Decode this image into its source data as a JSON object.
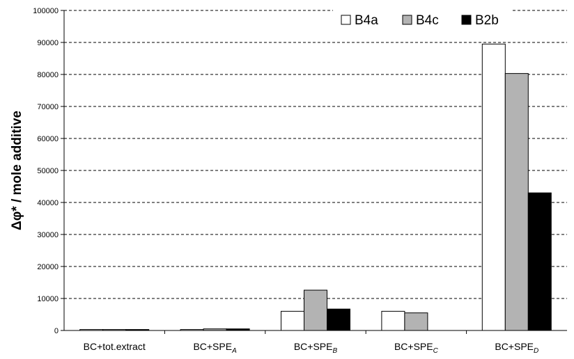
{
  "chart_data": {
    "type": "bar",
    "ylabel": "Δφ* / mole additive",
    "xlabel": "",
    "title": "",
    "ylim": [
      0,
      100000
    ],
    "yticks": [
      0,
      10000,
      20000,
      30000,
      40000,
      50000,
      60000,
      70000,
      80000,
      90000,
      100000
    ],
    "grid": "dashed-horizontal",
    "legend_position": "top-right",
    "categories": [
      {
        "main": "BC+tot.extract",
        "sub": ""
      },
      {
        "main": "BC+SPE",
        "sub": "A"
      },
      {
        "main": "BC+SPE",
        "sub": "B"
      },
      {
        "main": "BC+SPE",
        "sub": "C"
      },
      {
        "main": "BC+SPE",
        "sub": "D"
      }
    ],
    "series": [
      {
        "name": "B4a",
        "color": "#ffffff",
        "values": [
          300,
          300,
          6000,
          6000,
          89500
        ]
      },
      {
        "name": "B4c",
        "color": "#b3b3b3",
        "values": [
          300,
          500,
          12600,
          5500,
          80300
        ]
      },
      {
        "name": "B2b",
        "color": "#000000",
        "values": [
          300,
          500,
          6700,
          0,
          43000
        ]
      }
    ]
  }
}
